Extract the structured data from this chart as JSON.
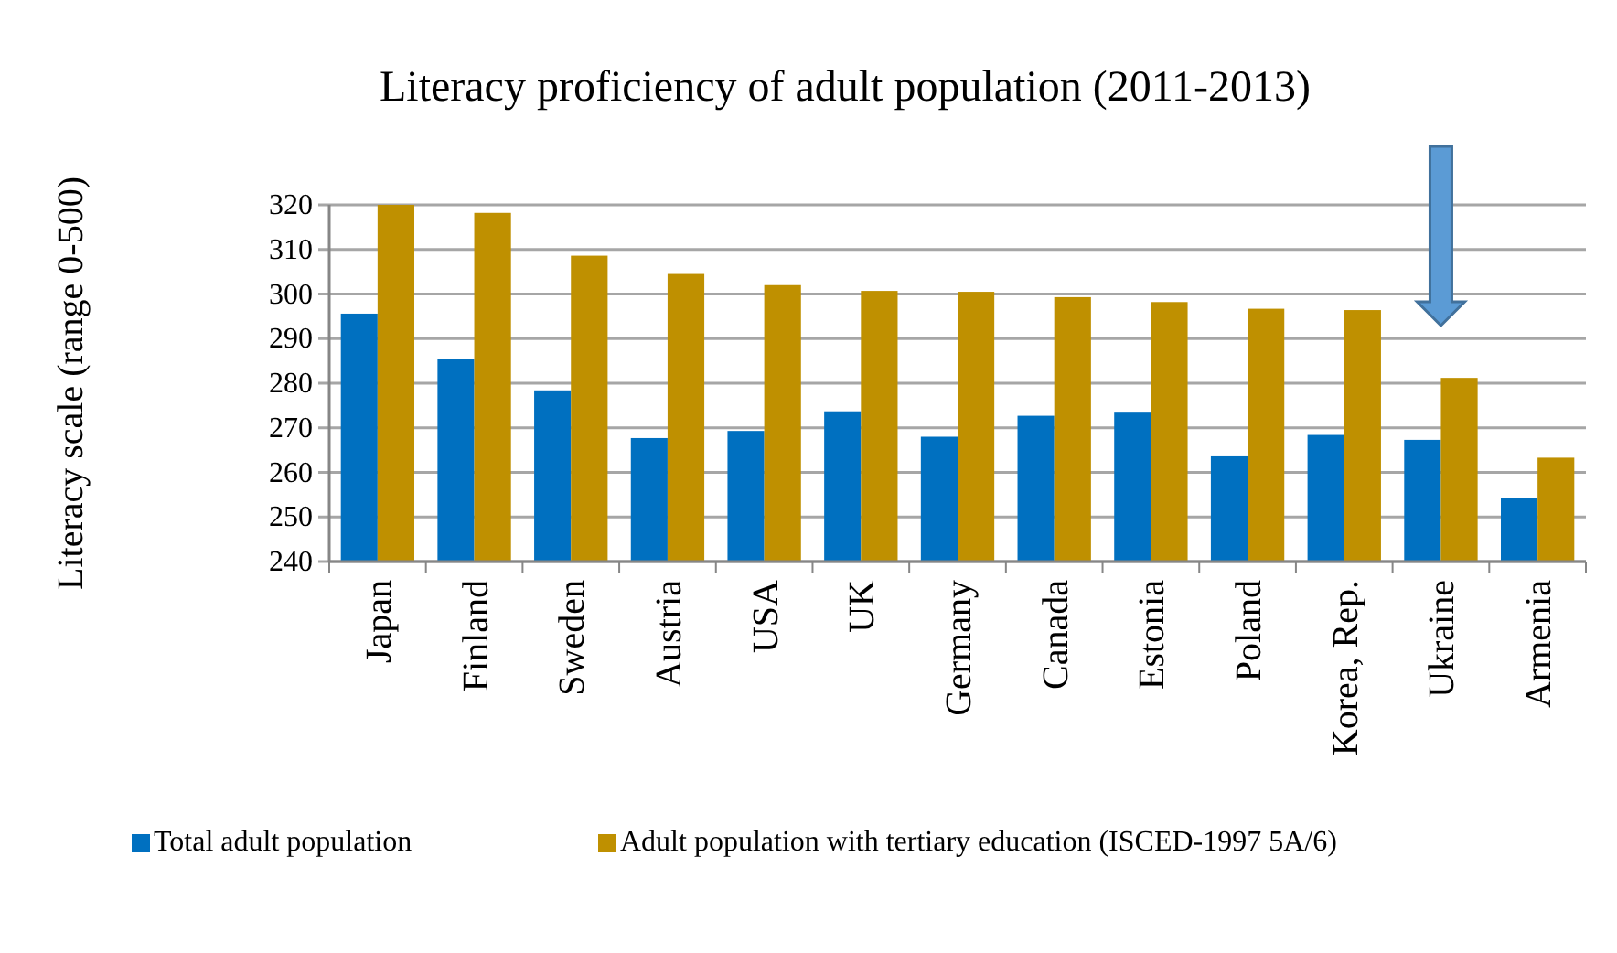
{
  "chart_data": {
    "type": "bar",
    "title": "Literacy proficiency of adult population (2011-2013)",
    "ylabel": "Literacy scale (range 0-500)",
    "categories": [
      "Japan",
      "Finland",
      "Sweden",
      "Austria",
      "USA",
      "UK",
      "Germany",
      "Canada",
      "Estonia",
      "Poland",
      "Korea, Rep.",
      "Ukraine",
      "Armenia"
    ],
    "series": [
      {
        "name": "Total adult population",
        "color": "#0070c0",
        "values": [
          295.6,
          285.5,
          278.4,
          267.7,
          269.3,
          273.7,
          268,
          272.7,
          273.4,
          263.6,
          268.4,
          267.3,
          254.2
        ]
      },
      {
        "name": "Adult population with tertiary education (ISCED-1997 5A/6)",
        "color": "#bf9000",
        "values": [
          320,
          318.2,
          308.6,
          304.5,
          302,
          300.7,
          300.5,
          299.3,
          298.2,
          296.7,
          296.4,
          281.2,
          263.3
        ]
      }
    ],
    "ylim": [
      240,
      320
    ],
    "yticks": [
      240,
      250,
      260,
      270,
      280,
      290,
      300,
      310,
      320
    ],
    "grid": "y",
    "legend": "bottom"
  }
}
